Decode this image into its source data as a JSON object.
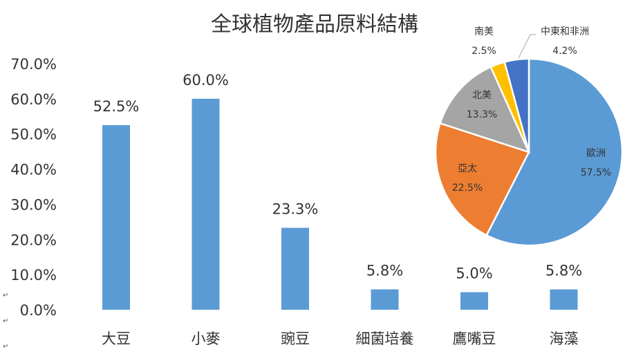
{
  "chart_data": [
    {
      "type": "bar",
      "title": "全球植物產品原料結構",
      "categories": [
        "大豆",
        "小麥",
        "豌豆",
        "細菌培養",
        "鷹嘴豆",
        "海藻"
      ],
      "values": [
        52.5,
        60.0,
        23.3,
        5.8,
        5.0,
        5.8
      ],
      "data_labels": [
        "52.5%",
        "60.0%",
        "23.3%",
        "5.8%",
        "5.0%",
        "5.8%"
      ],
      "ylim": [
        0,
        70
      ],
      "yticks": [
        "0.0%",
        "10.0%",
        "20.0%",
        "30.0%",
        "40.0%",
        "50.0%",
        "60.0%",
        "70.0%"
      ],
      "xlabel": "",
      "ylabel": "",
      "grid": false,
      "color": "#5B9BD5"
    },
    {
      "type": "pie",
      "labels": [
        "歐洲",
        "亞太",
        "北美",
        "南美",
        "中東和非洲"
      ],
      "values": [
        57.5,
        22.5,
        13.3,
        2.5,
        4.2
      ],
      "data_labels": [
        "57.5%",
        "22.5%",
        "13.3%",
        "2.5%",
        "4.2%"
      ],
      "colors": [
        "#5B9BD5",
        "#ED7D31",
        "#A5A5A5",
        "#FFC000",
        "#4472C4"
      ]
    }
  ],
  "paragraph_marks": [
    "↵",
    "↵",
    "↵"
  ]
}
